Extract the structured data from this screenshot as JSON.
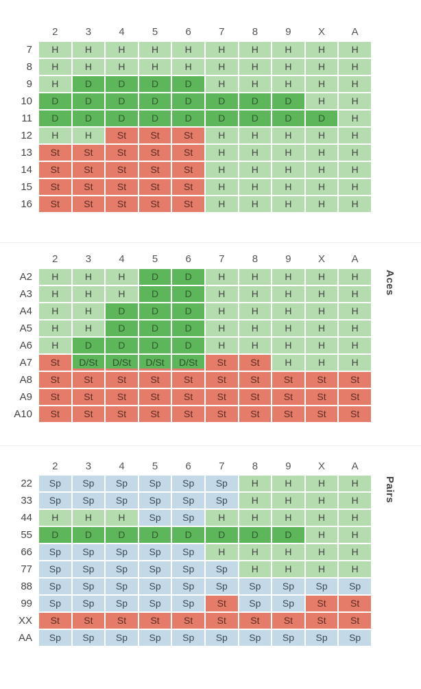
{
  "columns": [
    "2",
    "3",
    "4",
    "5",
    "6",
    "7",
    "8",
    "9",
    "X",
    "A"
  ],
  "hard": {
    "rows": [
      {
        "label": "7",
        "cells": [
          "H",
          "H",
          "H",
          "H",
          "H",
          "H",
          "H",
          "H",
          "H",
          "H"
        ]
      },
      {
        "label": "8",
        "cells": [
          "H",
          "H",
          "H",
          "H",
          "H",
          "H",
          "H",
          "H",
          "H",
          "H"
        ]
      },
      {
        "label": "9",
        "cells": [
          "H",
          "D",
          "D",
          "D",
          "D",
          "H",
          "H",
          "H",
          "H",
          "H"
        ]
      },
      {
        "label": "10",
        "cells": [
          "D",
          "D",
          "D",
          "D",
          "D",
          "D",
          "D",
          "D",
          "H",
          "H"
        ]
      },
      {
        "label": "11",
        "cells": [
          "D",
          "D",
          "D",
          "D",
          "D",
          "D",
          "D",
          "D",
          "D",
          "H"
        ]
      },
      {
        "label": "12",
        "cells": [
          "H",
          "H",
          "St",
          "St",
          "St",
          "H",
          "H",
          "H",
          "H",
          "H"
        ]
      },
      {
        "label": "13",
        "cells": [
          "St",
          "St",
          "St",
          "St",
          "St",
          "H",
          "H",
          "H",
          "H",
          "H"
        ]
      },
      {
        "label": "14",
        "cells": [
          "St",
          "St",
          "St",
          "St",
          "St",
          "H",
          "H",
          "H",
          "H",
          "H"
        ]
      },
      {
        "label": "15",
        "cells": [
          "St",
          "St",
          "St",
          "St",
          "St",
          "H",
          "H",
          "H",
          "H",
          "H"
        ]
      },
      {
        "label": "16",
        "cells": [
          "St",
          "St",
          "St",
          "St",
          "St",
          "H",
          "H",
          "H",
          "H",
          "H"
        ]
      }
    ]
  },
  "aces": {
    "side_label": "Aces",
    "rows": [
      {
        "label": "A2",
        "cells": [
          "H",
          "H",
          "H",
          "D",
          "D",
          "H",
          "H",
          "H",
          "H",
          "H"
        ]
      },
      {
        "label": "A3",
        "cells": [
          "H",
          "H",
          "H",
          "D",
          "D",
          "H",
          "H",
          "H",
          "H",
          "H"
        ]
      },
      {
        "label": "A4",
        "cells": [
          "H",
          "H",
          "D",
          "D",
          "D",
          "H",
          "H",
          "H",
          "H",
          "H"
        ]
      },
      {
        "label": "A5",
        "cells": [
          "H",
          "H",
          "D",
          "D",
          "D",
          "H",
          "H",
          "H",
          "H",
          "H"
        ]
      },
      {
        "label": "A6",
        "cells": [
          "H",
          "D",
          "D",
          "D",
          "D",
          "H",
          "H",
          "H",
          "H",
          "H"
        ]
      },
      {
        "label": "A7",
        "cells": [
          "St",
          "D/St",
          "D/St",
          "D/St",
          "D/St",
          "St",
          "St",
          "H",
          "H",
          "H"
        ]
      },
      {
        "label": "A8",
        "cells": [
          "St",
          "St",
          "St",
          "St",
          "St",
          "St",
          "St",
          "St",
          "St",
          "St"
        ]
      },
      {
        "label": "A9",
        "cells": [
          "St",
          "St",
          "St",
          "St",
          "St",
          "St",
          "St",
          "St",
          "St",
          "St"
        ]
      },
      {
        "label": "A10",
        "cells": [
          "St",
          "St",
          "St",
          "St",
          "St",
          "St",
          "St",
          "St",
          "St",
          "St"
        ]
      }
    ]
  },
  "pairs": {
    "side_label": "Pairs",
    "rows": [
      {
        "label": "22",
        "cells": [
          "Sp",
          "Sp",
          "Sp",
          "Sp",
          "Sp",
          "Sp",
          "H",
          "H",
          "H",
          "H"
        ]
      },
      {
        "label": "33",
        "cells": [
          "Sp",
          "Sp",
          "Sp",
          "Sp",
          "Sp",
          "Sp",
          "H",
          "H",
          "H",
          "H"
        ]
      },
      {
        "label": "44",
        "cells": [
          "H",
          "H",
          "H",
          "Sp",
          "Sp",
          "H",
          "H",
          "H",
          "H",
          "H"
        ]
      },
      {
        "label": "55",
        "cells": [
          "D",
          "D",
          "D",
          "D",
          "D",
          "D",
          "D",
          "D",
          "H",
          "H"
        ]
      },
      {
        "label": "66",
        "cells": [
          "Sp",
          "Sp",
          "Sp",
          "Sp",
          "Sp",
          "H",
          "H",
          "H",
          "H",
          "H"
        ]
      },
      {
        "label": "77",
        "cells": [
          "Sp",
          "Sp",
          "Sp",
          "Sp",
          "Sp",
          "Sp",
          "H",
          "H",
          "H",
          "H"
        ]
      },
      {
        "label": "88",
        "cells": [
          "Sp",
          "Sp",
          "Sp",
          "Sp",
          "Sp",
          "Sp",
          "Sp",
          "Sp",
          "Sp",
          "Sp"
        ]
      },
      {
        "label": "99",
        "cells": [
          "Sp",
          "Sp",
          "Sp",
          "Sp",
          "Sp",
          "St",
          "Sp",
          "Sp",
          "St",
          "St"
        ]
      },
      {
        "label": "XX",
        "cells": [
          "St",
          "St",
          "St",
          "St",
          "St",
          "St",
          "St",
          "St",
          "St",
          "St"
        ]
      },
      {
        "label": "AA",
        "cells": [
          "Sp",
          "Sp",
          "Sp",
          "Sp",
          "Sp",
          "Sp",
          "Sp",
          "Sp",
          "Sp",
          "Sp"
        ]
      }
    ]
  },
  "colors": {
    "hit": "#b5dcae",
    "double": "#5db659",
    "stand": "#e47c69",
    "split": "#c3d9e8"
  }
}
